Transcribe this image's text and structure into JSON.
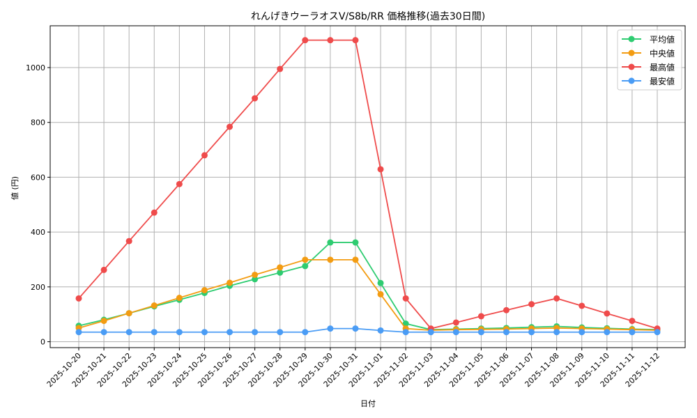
{
  "chart_data": {
    "type": "line",
    "title": "れんげきウーラオスV/S8b/RR 価格推移(過去30日間)",
    "xlabel": "日付",
    "ylabel": "値 (円)",
    "ylim": [
      -30,
      1150
    ],
    "yticks": [
      0,
      200,
      400,
      600,
      800,
      1000
    ],
    "grid": true,
    "legend_position": "upper right",
    "categories": [
      "2025-10-20",
      "2025-10-21",
      "2025-10-22",
      "2025-10-23",
      "2025-10-24",
      "2025-10-25",
      "2025-10-26",
      "2025-10-27",
      "2025-10-28",
      "2025-10-29",
      "2025-10-30",
      "2025-10-31",
      "2025-11-01",
      "2025-11-02",
      "2025-11-03",
      "2025-11-04",
      "2025-11-05",
      "2025-11-06",
      "2025-11-07",
      "2025-11-08",
      "2025-11-09",
      "2025-11-10",
      "2025-11-11",
      "2025-11-12"
    ],
    "series": [
      {
        "name": "平均値",
        "color": "#2ecc71",
        "values": [
          58,
          80,
          104,
          129,
          153,
          178,
          204,
          228,
          252,
          276,
          362,
          362,
          214,
          66,
          44,
          46,
          48,
          50,
          53,
          56,
          52,
          49,
          46,
          44
        ]
      },
      {
        "name": "中央値",
        "color": "#f39c12",
        "values": [
          50,
          76,
          104,
          132,
          160,
          188,
          215,
          244,
          271,
          299,
          299,
          299,
          173,
          48,
          42,
          44,
          45,
          46,
          48,
          50,
          48,
          46,
          44,
          42
        ]
      },
      {
        "name": "最高値",
        "color": "#ef4b4b",
        "values": [
          158,
          262,
          367,
          471,
          575,
          680,
          784,
          888,
          995,
          1100,
          1100,
          1100,
          629,
          158,
          48,
          70,
          93,
          115,
          137,
          158,
          131,
          103,
          76,
          48
        ]
      },
      {
        "name": "最安値",
        "color": "#4a9cf5",
        "values": [
          35,
          35,
          35,
          35,
          35,
          35,
          35,
          35,
          35,
          35,
          48,
          48,
          41,
          35,
          35,
          35,
          35,
          35,
          35,
          35,
          35,
          35,
          35,
          35
        ]
      }
    ]
  }
}
